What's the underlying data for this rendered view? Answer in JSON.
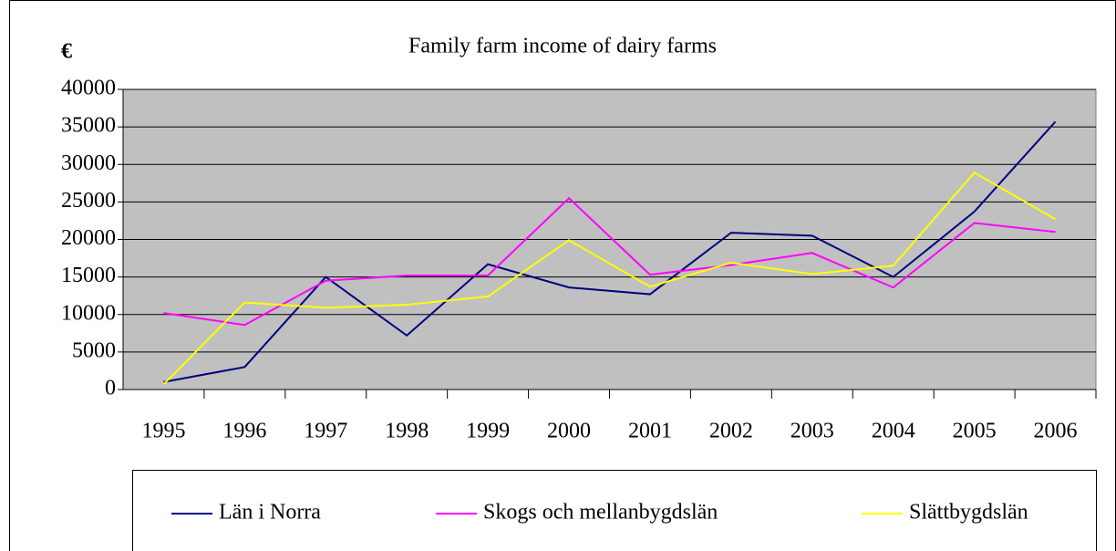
{
  "chart_data": {
    "type": "line",
    "title": "Family farm income of dairy farms",
    "y_label": "€",
    "categories": [
      "1995",
      "1996",
      "1997",
      "1998",
      "1999",
      "2000",
      "2001",
      "2002",
      "2003",
      "2004",
      "2005",
      "2006"
    ],
    "series": [
      {
        "name": "Län i Norra",
        "color": "#000080",
        "values": [
          1000,
          3000,
          15000,
          7200,
          16700,
          13600,
          12700,
          20900,
          20500,
          15000,
          23700,
          35700
        ]
      },
      {
        "name": "Skogs och mellanbygdslän",
        "color": "#ff00ff",
        "values": [
          10200,
          8600,
          14500,
          15200,
          15200,
          25500,
          15300,
          16600,
          18200,
          13600,
          22200,
          21000
        ]
      },
      {
        "name": "Slättbygdslän",
        "color": "#ffff00",
        "values": [
          700,
          11600,
          10900,
          11300,
          12400,
          19900,
          13700,
          16900,
          15400,
          16500,
          28900,
          22700
        ]
      }
    ],
    "ylim": [
      0,
      40000
    ],
    "yticks": [
      0,
      5000,
      10000,
      15000,
      20000,
      25000,
      30000,
      35000,
      40000
    ],
    "grid": true,
    "plot_background": "#c0c0c0",
    "legend": "bottom"
  }
}
